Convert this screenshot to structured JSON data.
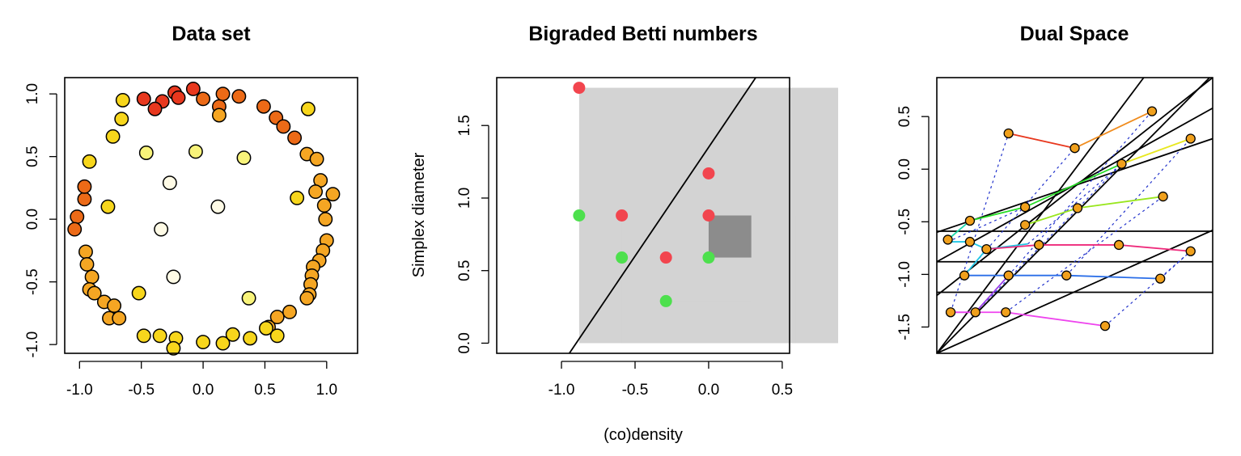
{
  "chart_data": [
    {
      "type": "scatter",
      "title": "Data set",
      "xlabel": "",
      "ylabel": "",
      "xlim": [
        -1.12,
        1.25
      ],
      "ylim": [
        -1.07,
        1.13
      ],
      "xticks": [
        -1.0,
        -0.5,
        0.0,
        0.5,
        1.0
      ],
      "xtick_labels": [
        "-1.0",
        "-0.5",
        "0.0",
        "0.5",
        "1.0"
      ],
      "yticks": [
        -1.0,
        -0.5,
        0.0,
        0.5,
        1.0
      ],
      "ytick_labels": [
        "-1.0",
        "-0.5",
        "0.0",
        "0.5",
        "1.0"
      ],
      "color_scale": [
        "#e8381e",
        "#ec6a17",
        "#f5a623",
        "#f7d61c",
        "#f8f37a",
        "#fffbe6"
      ],
      "point_stroke": "#000000",
      "points": [
        [
          -0.48,
          0.96,
          0
        ],
        [
          -0.23,
          1.01,
          0
        ],
        [
          -0.08,
          1.04,
          0
        ],
        [
          -0.2,
          0.97,
          0
        ],
        [
          -0.33,
          0.94,
          0
        ],
        [
          -0.39,
          0.88,
          0
        ],
        [
          0.0,
          0.96,
          1
        ],
        [
          0.13,
          0.9,
          1
        ],
        [
          0.16,
          1.0,
          1
        ],
        [
          0.29,
          0.98,
          1
        ],
        [
          0.49,
          0.9,
          1
        ],
        [
          0.59,
          0.81,
          1
        ],
        [
          0.65,
          0.74,
          1
        ],
        [
          0.74,
          0.65,
          1
        ],
        [
          -1.02,
          0.02,
          1
        ],
        [
          -1.04,
          -0.08,
          1
        ],
        [
          -0.96,
          0.16,
          1
        ],
        [
          -0.96,
          0.26,
          1
        ],
        [
          0.84,
          0.52,
          2
        ],
        [
          0.92,
          0.48,
          2
        ],
        [
          0.95,
          0.31,
          2
        ],
        [
          0.91,
          0.22,
          2
        ],
        [
          1.05,
          0.2,
          2
        ],
        [
          0.98,
          0.11,
          2
        ],
        [
          0.99,
          0.0,
          2
        ],
        [
          1.0,
          -0.17,
          2
        ],
        [
          0.97,
          -0.25,
          2
        ],
        [
          0.94,
          -0.33,
          2
        ],
        [
          0.89,
          -0.38,
          2
        ],
        [
          0.88,
          -0.45,
          2
        ],
        [
          0.87,
          -0.52,
          2
        ],
        [
          0.86,
          -0.6,
          2
        ],
        [
          0.84,
          -0.63,
          2
        ],
        [
          0.7,
          -0.74,
          2
        ],
        [
          0.6,
          -0.78,
          2
        ],
        [
          0.53,
          -0.86,
          2
        ],
        [
          -0.95,
          -0.26,
          2
        ],
        [
          -0.94,
          -0.36,
          2
        ],
        [
          -0.9,
          -0.46,
          2
        ],
        [
          -0.92,
          -0.56,
          2
        ],
        [
          -0.88,
          -0.59,
          2
        ],
        [
          -0.8,
          -0.66,
          2
        ],
        [
          -0.72,
          -0.69,
          2
        ],
        [
          -0.76,
          -0.79,
          2
        ],
        [
          -0.68,
          -0.79,
          2
        ],
        [
          0.13,
          0.83,
          2
        ],
        [
          -0.65,
          0.95,
          3
        ],
        [
          -0.66,
          0.8,
          3
        ],
        [
          -0.92,
          0.46,
          3
        ],
        [
          -0.73,
          0.66,
          3
        ],
        [
          0.85,
          0.88,
          3
        ],
        [
          0.76,
          0.17,
          3
        ],
        [
          -0.77,
          0.1,
          3
        ],
        [
          -0.52,
          -0.59,
          3
        ],
        [
          -0.48,
          -0.93,
          3
        ],
        [
          -0.35,
          -0.93,
          3
        ],
        [
          -0.22,
          -0.95,
          3
        ],
        [
          -0.24,
          -1.03,
          3
        ],
        [
          0.0,
          -0.98,
          3
        ],
        [
          0.16,
          -0.99,
          3
        ],
        [
          0.24,
          -0.92,
          3
        ],
        [
          0.38,
          -0.95,
          3
        ],
        [
          0.51,
          -0.87,
          3
        ],
        [
          0.6,
          -0.93,
          3
        ],
        [
          -0.46,
          0.53,
          4
        ],
        [
          -0.06,
          0.54,
          4
        ],
        [
          0.33,
          0.49,
          4
        ],
        [
          0.37,
          -0.63,
          4
        ],
        [
          -0.27,
          0.29,
          5
        ],
        [
          -0.34,
          -0.08,
          5
        ],
        [
          -0.24,
          -0.46,
          5
        ],
        [
          0.12,
          0.1,
          5
        ]
      ]
    },
    {
      "type": "scatter",
      "title": "Bigraded Betti numbers",
      "xlabel": "(co)density",
      "ylabel": "Simplex diameter",
      "xlim": [
        -1.44,
        0.55
      ],
      "ylim": [
        -0.07,
        1.83
      ],
      "xticks": [
        -1.0,
        -0.5,
        0.0,
        0.5
      ],
      "xtick_labels": [
        "-1.0",
        "-0.5",
        "0.0",
        "0.5"
      ],
      "yticks": [
        0.0,
        0.5,
        1.0,
        1.5
      ],
      "ytick_labels": [
        "0.0",
        "0.5",
        "1.0",
        "1.5"
      ],
      "light_rect_color": "#d3d3d3",
      "dark_rect_color": "#8c8c8c",
      "green": "#4de04d",
      "red": "#f2454e",
      "light_rects": [
        [
          -0.88,
          0.88,
          0.0,
          1.76
        ],
        [
          -0.59,
          0.59,
          0.0,
          0.88
        ],
        [
          -0.29,
          0.29,
          0.29,
          0.59
        ],
        [
          0.0,
          0.29,
          0.29,
          1.17
        ]
      ],
      "dark_rect": [
        0.0,
        0.29,
        0.59,
        0.88
      ],
      "line": {
        "slope": 1.5,
        "intercept": 1.35
      },
      "green_points": [
        [
          -0.88,
          0.88
        ],
        [
          -0.59,
          0.59
        ],
        [
          -0.29,
          0.29
        ],
        [
          0.0,
          0.59
        ]
      ],
      "red_points": [
        [
          -0.88,
          1.76
        ],
        [
          -0.59,
          0.88
        ],
        [
          -0.29,
          0.59
        ],
        [
          0.0,
          0.88
        ],
        [
          0.0,
          1.17
        ]
      ]
    },
    {
      "type": "line",
      "title": "Dual Space",
      "xlabel": "",
      "ylabel": "",
      "xlim": [
        0.0,
        1.0
      ],
      "ylim": [
        -1.75,
        0.87
      ],
      "yticks": [
        -1.5,
        -1.0,
        -0.5,
        0.0,
        0.5
      ],
      "ytick_labels": [
        "-1.5",
        "-1.0",
        "-0.5",
        "0.0",
        "0.5"
      ],
      "marker_color": "#f0a01c",
      "dotted_color": "#2233cc",
      "black_lines": [
        [
          [
            0.0,
            -1.75
          ],
          [
            0.75,
            0.87
          ]
        ],
        [
          [
            0.0,
            -1.75
          ],
          [
            1.0,
            0.9
          ]
        ],
        [
          [
            0.0,
            -1.75
          ],
          [
            1.0,
            -0.58
          ]
        ],
        [
          [
            0.0,
            -1.2
          ],
          [
            1.0,
            0.87
          ]
        ],
        [
          [
            0.0,
            -0.88
          ],
          [
            1.0,
            0.58
          ]
        ],
        [
          [
            0.0,
            -0.6
          ],
          [
            1.0,
            0.29
          ]
        ],
        [
          [
            0.0,
            -0.59
          ],
          [
            1.0,
            -0.59
          ]
        ],
        [
          [
            0.0,
            -0.88
          ],
          [
            1.0,
            -0.88
          ]
        ],
        [
          [
            0.0,
            -1.17
          ],
          [
            1.0,
            -1.17
          ]
        ]
      ],
      "colored_series": [
        {
          "color": "#e8381e",
          "points": [
            [
              0.26,
              0.34
            ],
            [
              0.5,
              0.2
            ]
          ]
        },
        {
          "color": "#f08c1e",
          "points": [
            [
              0.5,
              0.2
            ],
            [
              0.78,
              0.55
            ]
          ]
        },
        {
          "color": "#e8e820",
          "points": [
            [
              0.67,
              0.05
            ],
            [
              0.92,
              0.29
            ]
          ]
        },
        {
          "color": "#28dd28",
          "points": [
            [
              0.12,
              -0.49
            ],
            [
              0.32,
              -0.36
            ],
            [
              0.67,
              0.05
            ]
          ]
        },
        {
          "color": "#99e61e",
          "points": [
            [
              0.32,
              -0.53
            ],
            [
              0.51,
              -0.37
            ],
            [
              0.82,
              -0.26
            ]
          ]
        },
        {
          "color": "#1ed6a8",
          "points": [
            [
              0.04,
              -0.67
            ],
            [
              0.12,
              -0.49
            ]
          ]
        },
        {
          "color": "#22c8e6",
          "points": [
            [
              0.04,
              -0.69
            ],
            [
              0.12,
              -0.69
            ],
            [
              0.18,
              -0.76
            ],
            [
              0.33,
              -0.71
            ]
          ]
        },
        {
          "color": "#ee2a7b",
          "points": [
            [
              0.18,
              -0.76
            ],
            [
              0.37,
              -0.72
            ],
            [
              0.66,
              -0.72
            ],
            [
              0.92,
              -0.78
            ]
          ]
        },
        {
          "color": "#2a6ee8",
          "points": [
            [
              0.1,
              -1.01
            ],
            [
              0.26,
              -1.01
            ],
            [
              0.47,
              -1.01
            ],
            [
              0.81,
              -1.04
            ]
          ]
        },
        {
          "color": "#22c8e6",
          "points": [
            [
              0.1,
              -1.01
            ],
            [
              0.18,
              -0.76
            ]
          ]
        },
        {
          "color": "#9b3ee8",
          "points": [
            [
              0.05,
              -1.36
            ],
            [
              0.14,
              -1.36
            ],
            [
              0.26,
              -1.01
            ]
          ]
        },
        {
          "color": "#ee44ee",
          "points": [
            [
              0.05,
              -1.36
            ],
            [
              0.25,
              -1.36
            ],
            [
              0.61,
              -1.49
            ]
          ]
        }
      ],
      "dotted_pairs": [
        [
          [
            0.05,
            -1.36
          ],
          [
            0.26,
            0.34
          ]
        ],
        [
          [
            0.14,
            -1.36
          ],
          [
            0.67,
            0.05
          ]
        ],
        [
          [
            0.25,
            -1.36
          ],
          [
            0.82,
            -0.26
          ]
        ],
        [
          [
            0.61,
            -1.49
          ],
          [
            0.92,
            -0.78
          ]
        ],
        [
          [
            0.1,
            -1.01
          ],
          [
            0.5,
            0.2
          ]
        ],
        [
          [
            0.26,
            -1.01
          ],
          [
            0.78,
            0.55
          ]
        ],
        [
          [
            0.47,
            -1.01
          ],
          [
            0.92,
            0.29
          ]
        ],
        [
          [
            0.81,
            -1.04
          ],
          [
            0.92,
            -0.78
          ]
        ],
        [
          [
            0.04,
            -0.69
          ],
          [
            0.32,
            -0.36
          ]
        ],
        [
          [
            0.33,
            -0.71
          ],
          [
            0.67,
            0.05
          ]
        ]
      ],
      "markers": [
        [
          0.26,
          0.34
        ],
        [
          0.5,
          0.2
        ],
        [
          0.78,
          0.55
        ],
        [
          0.67,
          0.05
        ],
        [
          0.92,
          0.29
        ],
        [
          0.12,
          -0.49
        ],
        [
          0.32,
          -0.36
        ],
        [
          0.32,
          -0.53
        ],
        [
          0.51,
          -0.37
        ],
        [
          0.82,
          -0.26
        ],
        [
          0.04,
          -0.67
        ],
        [
          0.12,
          -0.69
        ],
        [
          0.18,
          -0.76
        ],
        [
          0.37,
          -0.72
        ],
        [
          0.66,
          -0.72
        ],
        [
          0.92,
          -0.78
        ],
        [
          0.1,
          -1.01
        ],
        [
          0.26,
          -1.01
        ],
        [
          0.47,
          -1.01
        ],
        [
          0.81,
          -1.04
        ],
        [
          0.05,
          -1.36
        ],
        [
          0.14,
          -1.36
        ],
        [
          0.25,
          -1.36
        ],
        [
          0.61,
          -1.49
        ]
      ]
    }
  ]
}
